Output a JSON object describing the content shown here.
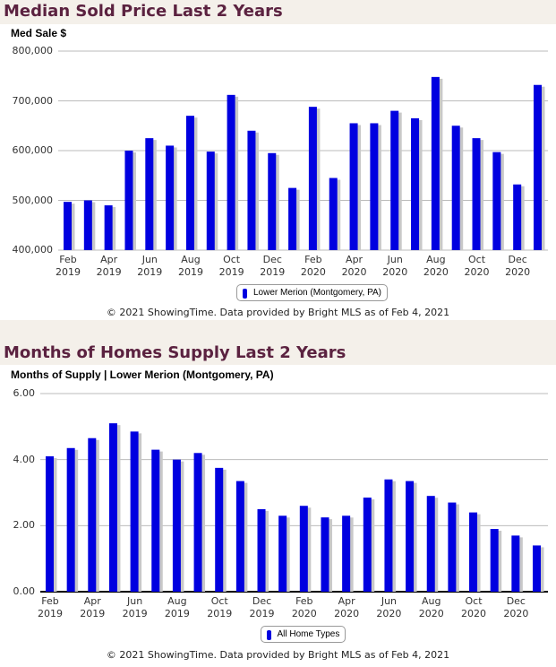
{
  "chart_data": [
    {
      "type": "bar",
      "title": "Median Sold Price Last 2 Years",
      "y_axis_title": "Med Sale $",
      "footer": "© 2021 ShowingTime. Data provided by Bright MLS as of Feb 4, 2021",
      "categories": [
        "Feb 2019",
        null,
        "Apr 2019",
        null,
        "Jun 2019",
        null,
        "Aug 2019",
        null,
        "Oct 2019",
        null,
        "Dec 2019",
        null,
        "Feb 2020",
        null,
        "Apr 2020",
        null,
        "Jun 2020",
        null,
        "Aug 2020",
        null,
        "Oct 2020",
        null,
        "Dec 2020",
        null
      ],
      "series": [
        {
          "name": "Lower Merion (Montgomery, PA)",
          "color": "#0000e0",
          "values": [
            497000,
            500000,
            490000,
            600000,
            625000,
            610000,
            670000,
            598000,
            712000,
            640000,
            595000,
            525000,
            688000,
            545000,
            655000,
            655000,
            680000,
            665000,
            748000,
            650000,
            625000,
            597000,
            532000,
            732000
          ]
        }
      ],
      "ylim": [
        400000,
        800000
      ],
      "yticks": [
        {
          "value": 400000,
          "label": "400,000"
        },
        {
          "value": 500000,
          "label": "500,000"
        },
        {
          "value": 600000,
          "label": "600,000"
        },
        {
          "value": 700000,
          "label": "700,000"
        },
        {
          "value": 800000,
          "label": "800,000"
        }
      ],
      "grid": true
    },
    {
      "type": "bar",
      "title": "Months of Homes Supply Last 2 Years",
      "y_axis_title": "Months of Supply | Lower Merion (Montgomery, PA)",
      "footer": "© 2021 ShowingTime. Data provided by Bright MLS as of Feb 4, 2021",
      "categories": [
        "Feb 2019",
        null,
        "Apr 2019",
        null,
        "Jun 2019",
        null,
        "Aug 2019",
        null,
        "Oct 2019",
        null,
        "Dec 2019",
        null,
        "Feb 2020",
        null,
        "Apr 2020",
        null,
        "Jun 2020",
        null,
        "Aug 2020",
        null,
        "Oct 2020",
        null,
        "Dec 2020",
        null
      ],
      "series": [
        {
          "name": "All Home Types",
          "color": "#0000e0",
          "values": [
            4.1,
            4.35,
            4.65,
            5.1,
            4.85,
            4.3,
            4.0,
            4.2,
            3.75,
            3.35,
            2.5,
            2.3,
            2.6,
            2.25,
            2.3,
            2.85,
            3.4,
            3.35,
            2.9,
            2.7,
            2.4,
            1.9,
            1.7,
            1.4
          ]
        }
      ],
      "ylim": [
        0,
        6
      ],
      "yticks": [
        {
          "value": 0,
          "label": "0.00"
        },
        {
          "value": 2,
          "label": "2.00"
        },
        {
          "value": 4,
          "label": "4.00"
        },
        {
          "value": 6,
          "label": "6.00"
        }
      ],
      "grid": true
    }
  ]
}
